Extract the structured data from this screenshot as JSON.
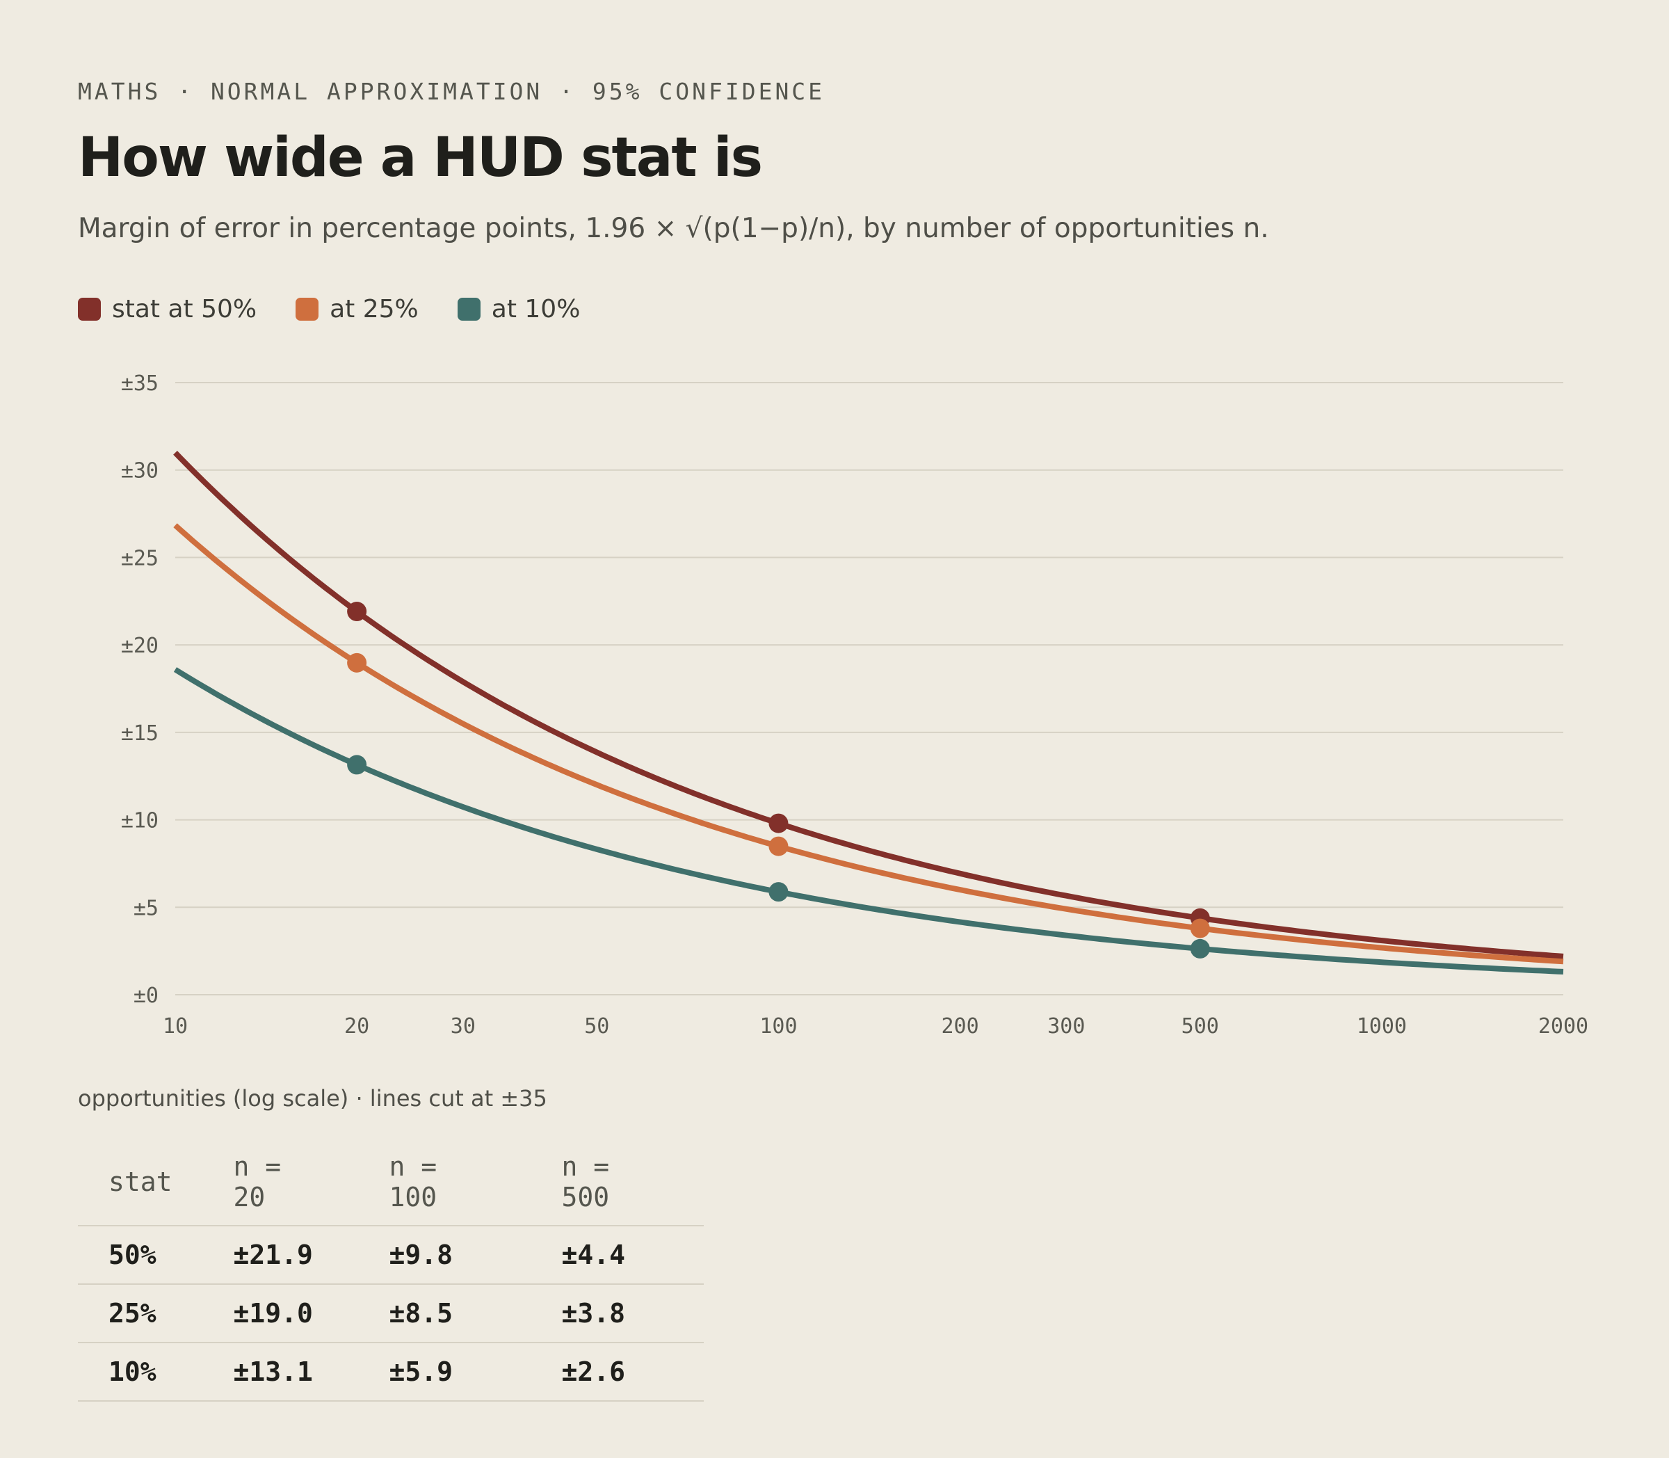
{
  "kicker": "MATHS · NORMAL APPROXIMATION · 95% CONFIDENCE",
  "title": "How wide a HUD stat is",
  "subtitle": "Margin of error in percentage points, 1.96 × √(p(1−p)/n), by number of opportunities n.",
  "axis_note": "opportunities (log scale) · lines cut at ±35",
  "chart_data": {
    "type": "line",
    "x_scale": "log",
    "xlim": [
      10,
      2000
    ],
    "ylim": [
      0,
      35
    ],
    "x_ticks": [
      10,
      20,
      30,
      50,
      100,
      200,
      300,
      500,
      1000,
      2000
    ],
    "x_tick_labels": [
      "10",
      "20",
      "30",
      "50",
      "100",
      "200",
      "300",
      "500",
      "1000",
      "2000"
    ],
    "y_ticks": [
      0,
      5,
      10,
      15,
      20,
      25,
      30,
      35
    ],
    "y_tick_labels": [
      "±0",
      "±5",
      "±10",
      "±15",
      "±20",
      "±25",
      "±30",
      "±35"
    ],
    "grid": true,
    "legend_position": "top-left",
    "marked_x": [
      20,
      100,
      500
    ],
    "series": [
      {
        "name": "stat at 50%",
        "p": 0.5,
        "color": "#82302a",
        "x": [
          10,
          20,
          30,
          50,
          100,
          200,
          300,
          500,
          1000,
          2000
        ],
        "values": [
          31.0,
          21.9,
          17.9,
          13.9,
          9.8,
          6.9,
          5.7,
          4.4,
          3.1,
          2.2
        ]
      },
      {
        "name": "at 25%",
        "p": 0.25,
        "color": "#cf6f3e",
        "x": [
          10,
          20,
          30,
          50,
          100,
          200,
          300,
          500,
          1000,
          2000
        ],
        "values": [
          26.8,
          19.0,
          15.5,
          12.0,
          8.5,
          6.0,
          4.9,
          3.8,
          2.7,
          1.9
        ]
      },
      {
        "name": "at 10%",
        "p": 0.1,
        "color": "#40706c",
        "x": [
          10,
          20,
          30,
          50,
          100,
          200,
          300,
          500,
          1000,
          2000
        ],
        "values": [
          18.6,
          13.1,
          10.7,
          8.3,
          5.9,
          4.2,
          3.4,
          2.6,
          1.9,
          1.3
        ]
      }
    ]
  },
  "table": {
    "headers": [
      "stat",
      "n = 20",
      "n = 100",
      "n = 500"
    ],
    "rows": [
      [
        "50%",
        "±21.9",
        "±9.8",
        "±4.4"
      ],
      [
        "25%",
        "±19.0",
        "±8.5",
        "±3.8"
      ],
      [
        "10%",
        "±13.1",
        "±5.9",
        "±2.6"
      ]
    ]
  }
}
